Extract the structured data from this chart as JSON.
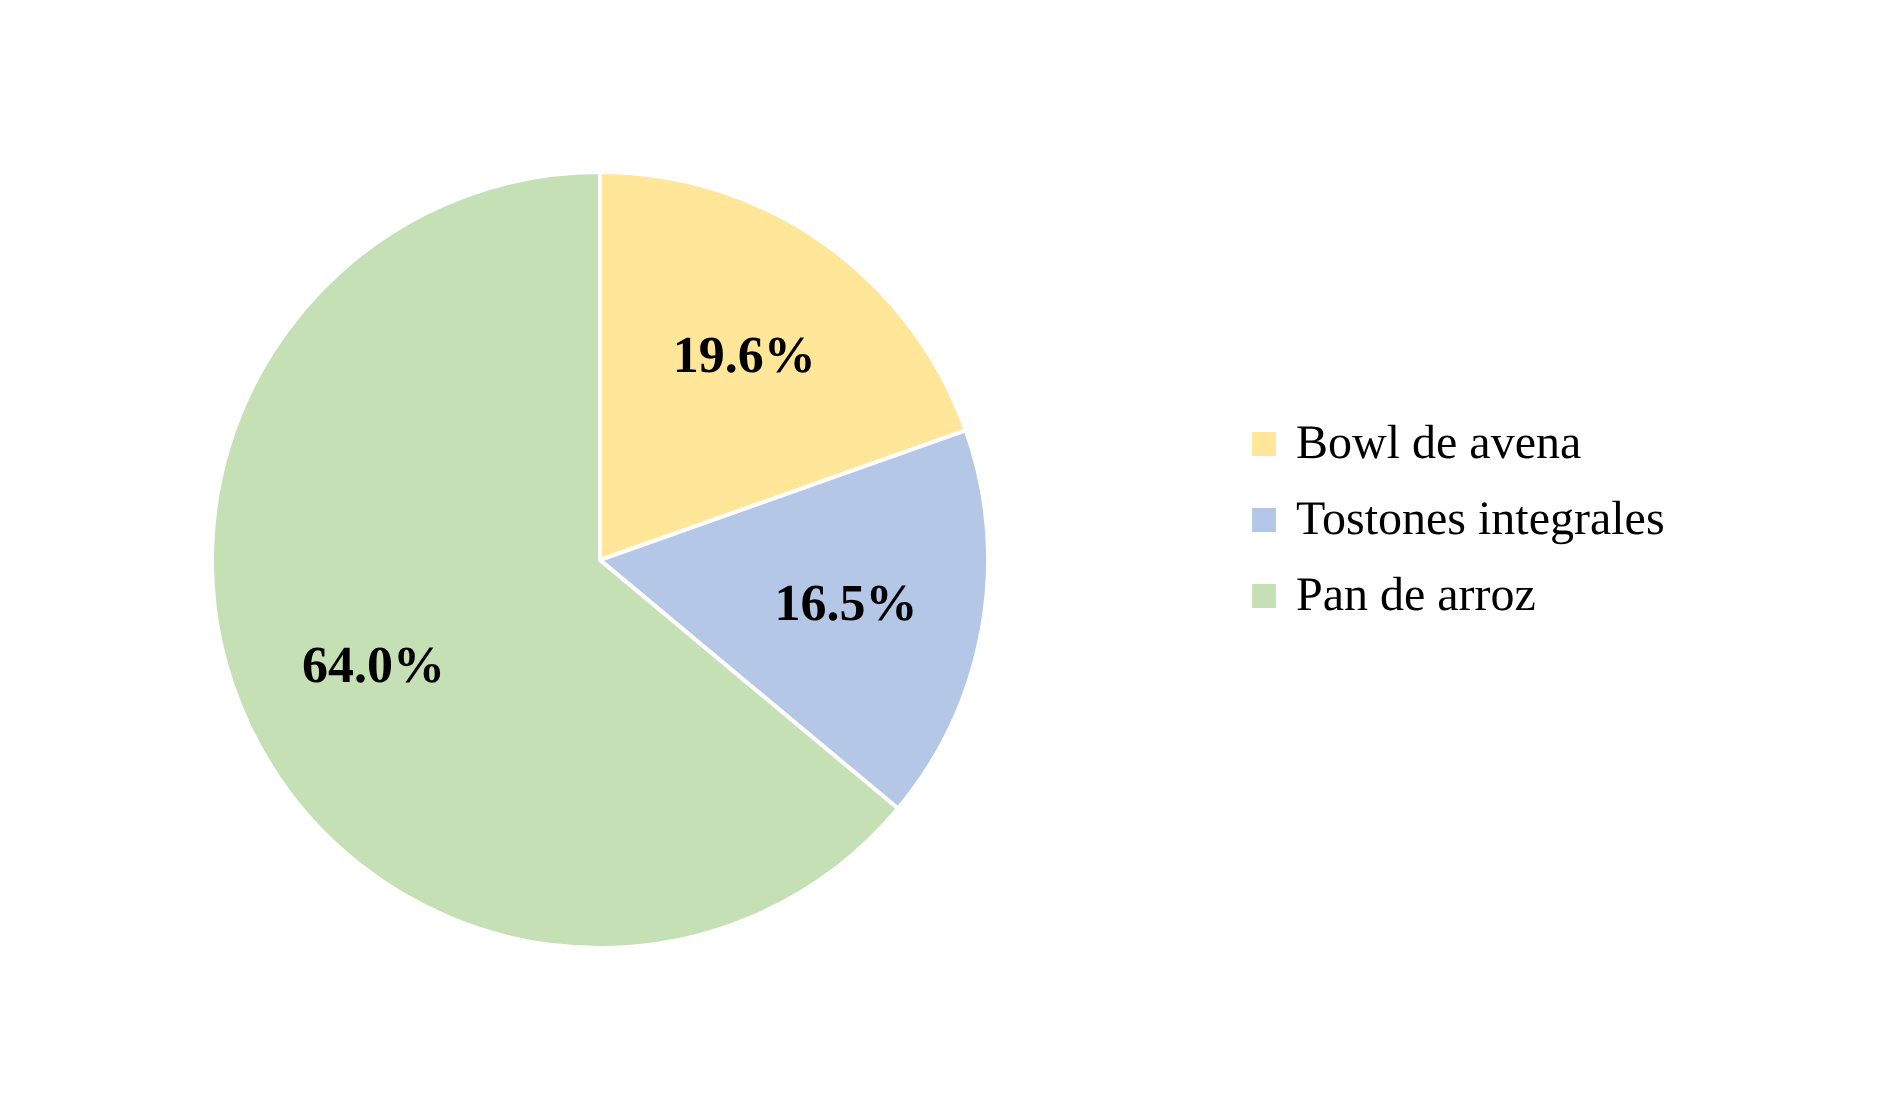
{
  "chart_data": {
    "type": "pie",
    "categories": [
      "Bowl de avena",
      "Tostones integrales",
      "Pan de arroz"
    ],
    "values": [
      19.6,
      16.5,
      64.0
    ],
    "colors": [
      "#ffe699",
      "#b4c7e7",
      "#c5e0b4"
    ],
    "value_labels": [
      "19.6%",
      "16.5%",
      "64.0%"
    ],
    "legend": "right"
  }
}
